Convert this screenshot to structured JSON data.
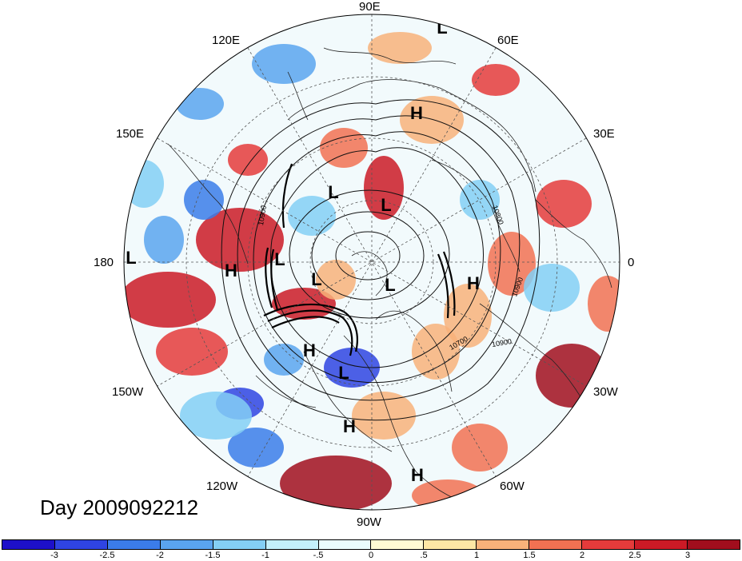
{
  "title": "Day 2009092212",
  "longitude_labels": {
    "e90": "90E",
    "e120": "120E",
    "e60": "60E",
    "e150": "150E",
    "e30": "30E",
    "w180": "180",
    "e0": "0",
    "w150": "150W",
    "w30": "30W",
    "w120": "120W",
    "w60": "60W",
    "w90": "90W"
  },
  "pressure_centers": [
    {
      "label": "L",
      "region": "northern Siberia"
    },
    {
      "label": "H",
      "region": "Siberia"
    },
    {
      "label": "L",
      "region": "East Siberia"
    },
    {
      "label": "L",
      "region": "Arctic Ocean"
    },
    {
      "label": "L",
      "region": "dateline"
    },
    {
      "label": "H",
      "region": "North Pacific"
    },
    {
      "label": "L",
      "region": "Bering Sea"
    },
    {
      "label": "L",
      "region": "Alaska"
    },
    {
      "label": "L",
      "region": "Canadian Arctic"
    },
    {
      "label": "H",
      "region": "Europe"
    },
    {
      "label": "H",
      "region": "western Canada"
    },
    {
      "label": "L",
      "region": "central Canada"
    },
    {
      "label": "H",
      "region": "United States"
    },
    {
      "label": "H",
      "region": "Caribbean"
    }
  ],
  "contour_labels": [
    "10900",
    "10800",
    "10900",
    "10700",
    "10900"
  ],
  "colorbar": {
    "ticks": [
      "-3",
      "-2.5",
      "-2",
      "-1.5",
      "-1",
      "-.5",
      "0",
      ".5",
      "1",
      "1.5",
      "2",
      "2.5",
      "3"
    ],
    "colors": [
      "#1d10c9",
      "#2f44e2",
      "#3b7ce9",
      "#5aa4ef",
      "#84cff5",
      "#c3f0fb",
      "#eafcfd",
      "#fffbd4",
      "#fde7a5",
      "#f8b27a",
      "#f27152",
      "#e53b3b",
      "#cb1a26",
      "#a10e1d"
    ]
  }
}
